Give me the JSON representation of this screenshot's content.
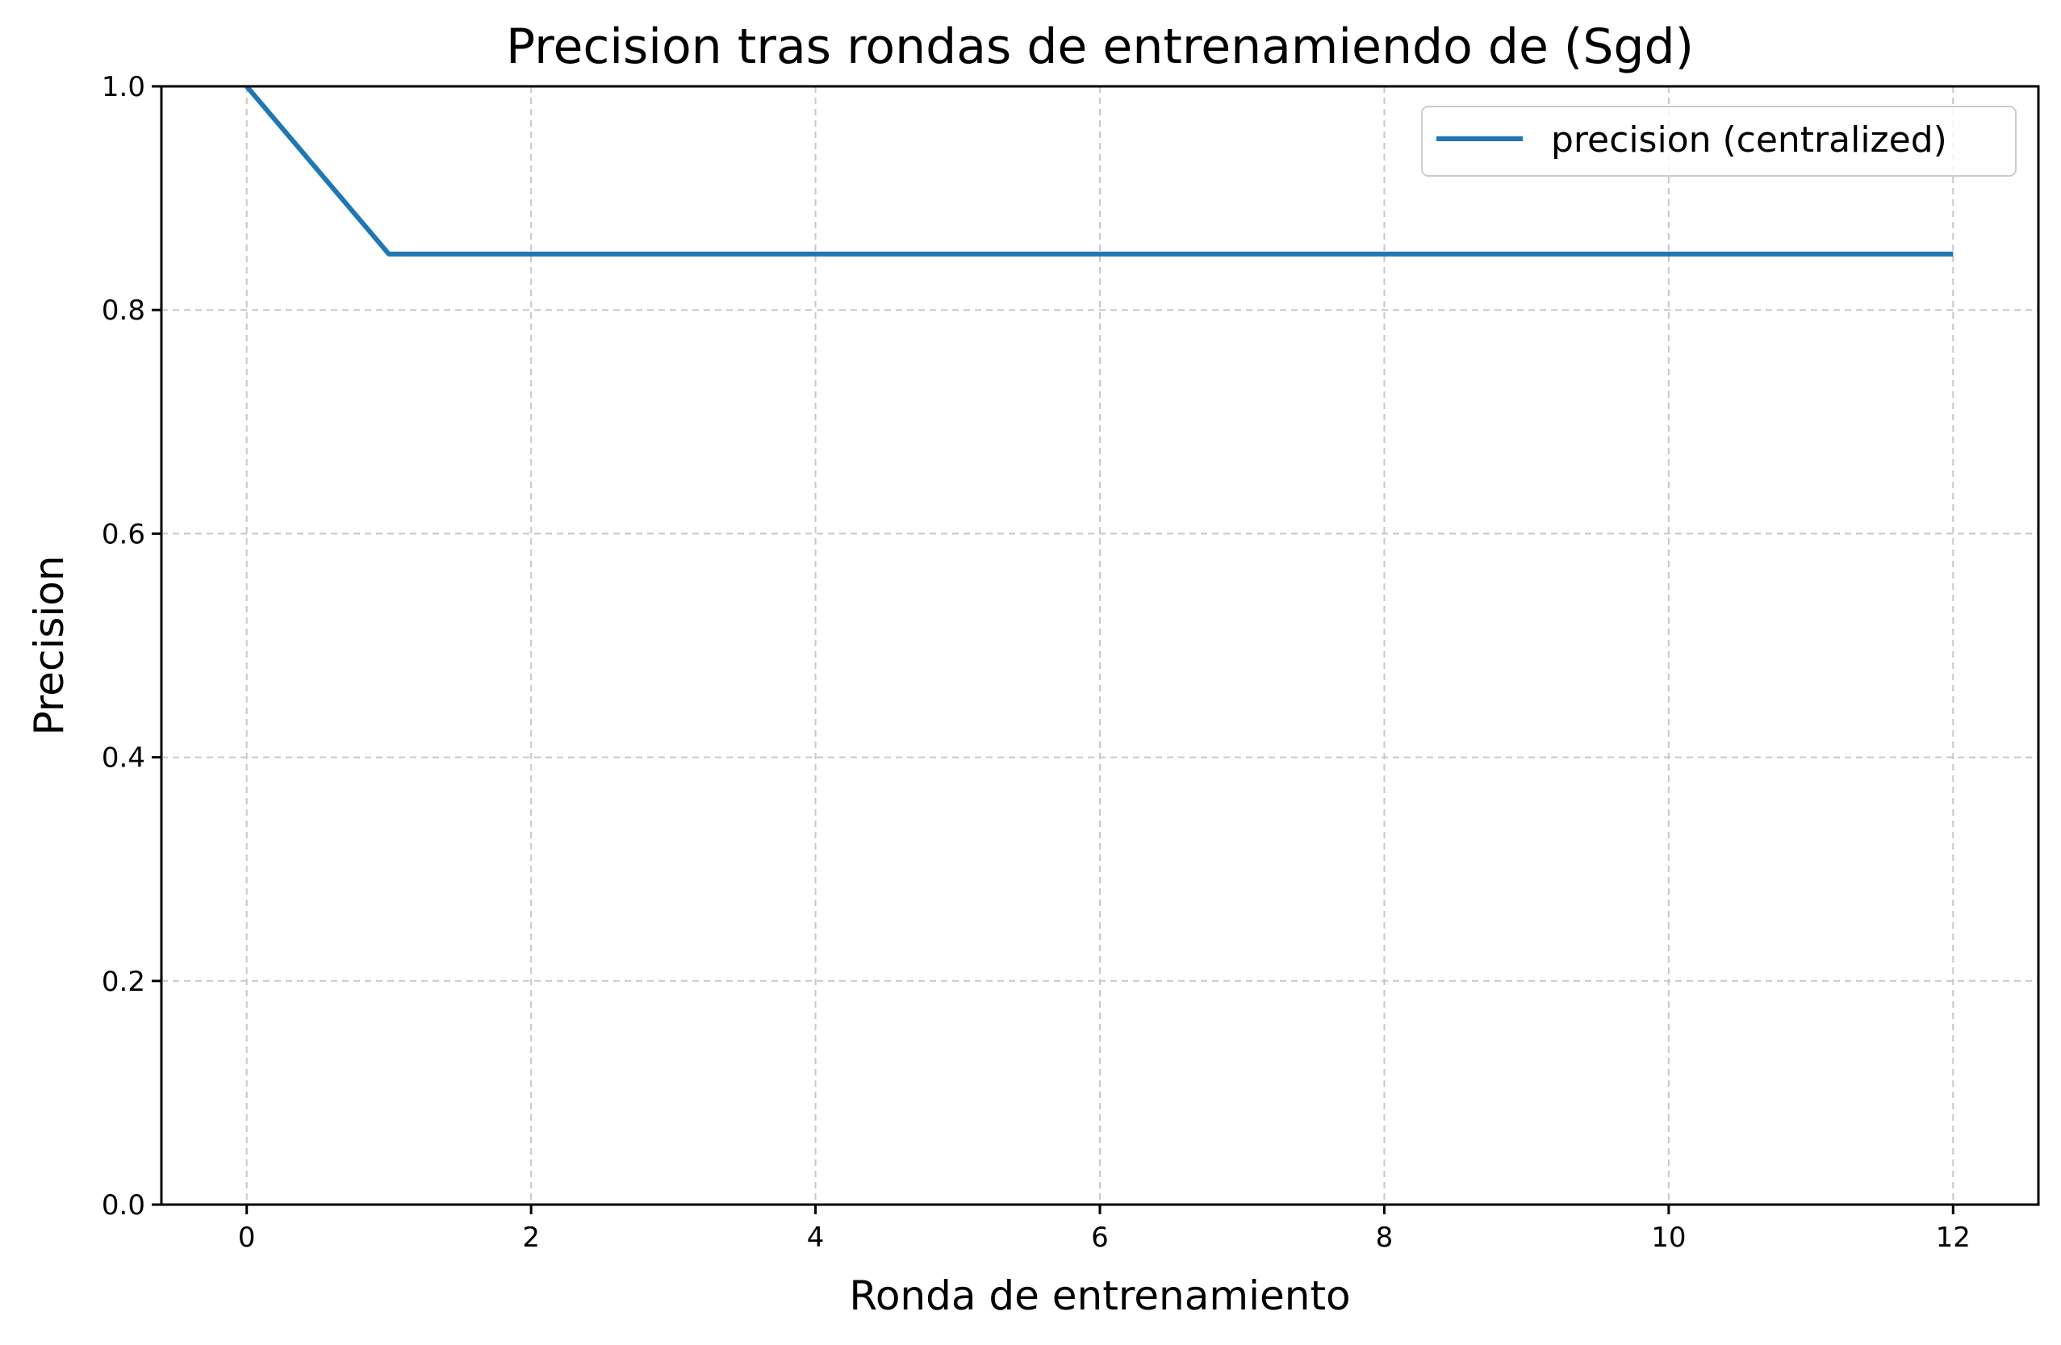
{
  "chart_data": {
    "type": "line",
    "title": "Precision tras rondas de entrenamiendo de (Sgd)",
    "xlabel": "Ronda de entrenamiento",
    "ylabel": "Precision",
    "xlim": [
      -0.6,
      12.6
    ],
    "ylim": [
      0.0,
      1.0
    ],
    "xticks": [
      0,
      2,
      4,
      6,
      8,
      10,
      12
    ],
    "xtick_labels": [
      "0",
      "2",
      "4",
      "6",
      "8",
      "10",
      "12"
    ],
    "yticks": [
      0.0,
      0.2,
      0.4,
      0.6,
      0.8,
      1.0
    ],
    "ytick_labels": [
      "0.0",
      "0.2",
      "0.4",
      "0.6",
      "0.8",
      "1.0"
    ],
    "grid": true,
    "legend_position": "top-right",
    "series": [
      {
        "name": "precision (centralized)",
        "color": "#1f77b4",
        "x": [
          0,
          1,
          2,
          3,
          4,
          5,
          6,
          7,
          8,
          9,
          10,
          11,
          12
        ],
        "y": [
          1.0,
          0.85,
          0.85,
          0.85,
          0.85,
          0.85,
          0.85,
          0.85,
          0.85,
          0.85,
          0.85,
          0.85,
          0.85
        ]
      }
    ]
  }
}
